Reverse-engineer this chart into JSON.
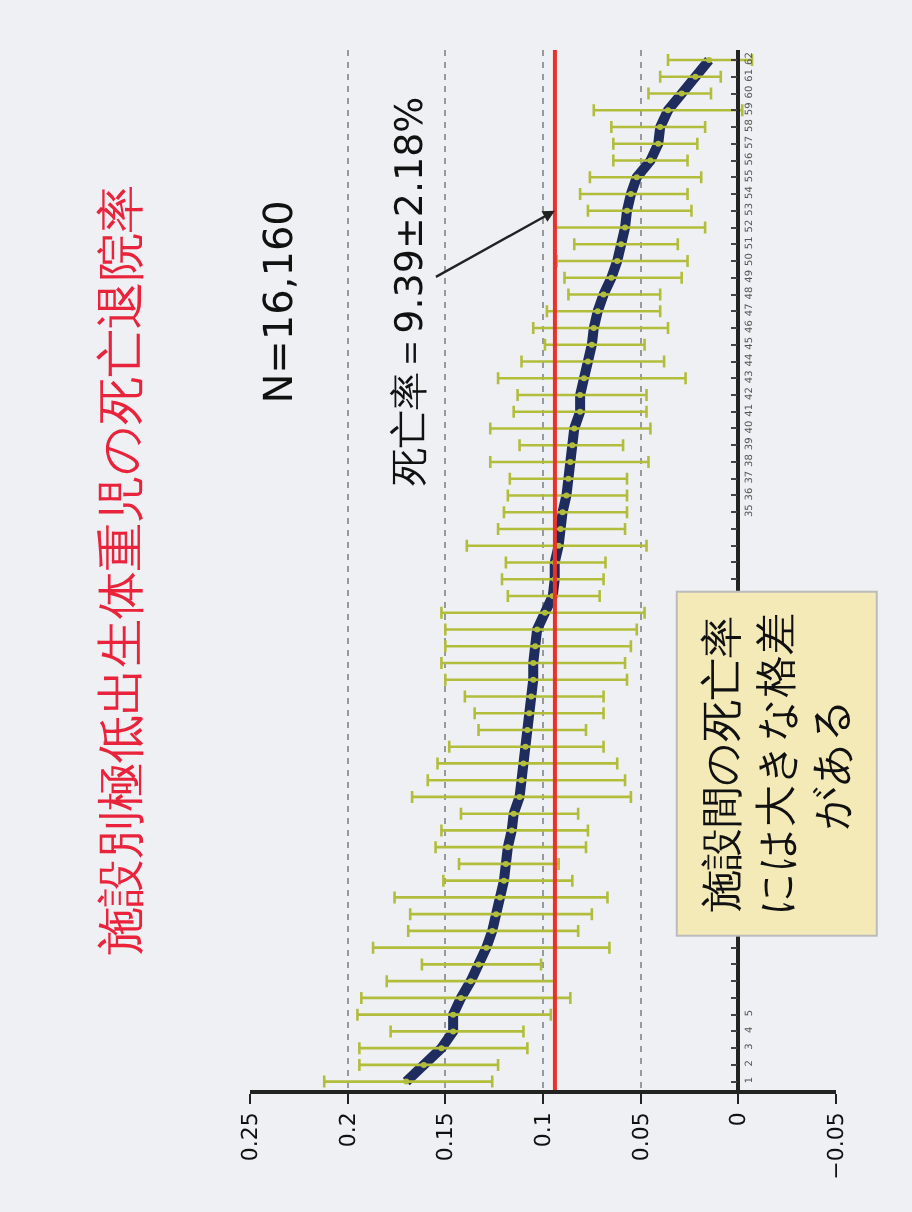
{
  "chart_data": {
    "type": "line",
    "orientation": "horizontal",
    "title": "施設別極低出生体重児の死亡退院率",
    "categories": [
      "62",
      "61",
      "60",
      "59",
      "58",
      "57",
      "56",
      "55",
      "54",
      "53",
      "52",
      "51",
      "50",
      "49",
      "48",
      "47",
      "46",
      "45",
      "44",
      "43",
      "42",
      "41",
      "40",
      "39",
      "38",
      "37",
      "36",
      "35",
      null,
      null,
      null,
      null,
      null,
      null,
      null,
      null,
      null,
      null,
      null,
      null,
      null,
      null,
      null,
      null,
      null,
      null,
      null,
      null,
      null,
      null,
      null,
      null,
      null,
      null,
      null,
      null,
      null,
      "5",
      "4",
      "3",
      "2",
      "1"
    ],
    "series": [
      {
        "type": "scatter",
        "color": "#b3bd3c",
        "values": [
          0.015,
          0.022,
          0.029,
          0.036,
          0.04,
          0.041,
          0.045,
          0.052,
          0.055,
          0.057,
          0.058,
          0.06,
          0.062,
          0.065,
          0.069,
          0.072,
          0.074,
          0.075,
          0.077,
          0.079,
          0.081,
          0.081,
          0.084,
          0.085,
          0.086,
          0.087,
          0.088,
          0.09,
          0.091,
          0.092,
          0.094,
          0.094,
          0.095,
          0.099,
          0.103,
          0.104,
          0.105,
          0.105,
          0.106,
          0.107,
          0.108,
          0.109,
          0.11,
          0.111,
          0.112,
          0.115,
          0.116,
          0.118,
          0.119,
          0.12,
          0.122,
          0.124,
          0.126,
          0.129,
          0.133,
          0.137,
          0.142,
          0.146,
          0.146,
          0.152,
          0.161,
          0.17
        ],
        "errors": [
          [
            -0.007,
            0.036
          ],
          [
            0.009,
            0.04
          ],
          [
            0.014,
            0.046
          ],
          [
            -0.002,
            0.074
          ],
          [
            0.017,
            0.065
          ],
          [
            0.021,
            0.064
          ],
          [
            0.026,
            0.064
          ],
          [
            0.019,
            0.076
          ],
          [
            0.026,
            0.081
          ],
          [
            0.024,
            0.077
          ],
          [
            0.017,
            0.094
          ],
          [
            0.031,
            0.084
          ],
          [
            0.026,
            0.093
          ],
          [
            0.029,
            0.089
          ],
          [
            0.04,
            0.087
          ],
          [
            0.04,
            0.098
          ],
          [
            0.036,
            0.105
          ],
          [
            0.048,
            0.099
          ],
          [
            0.038,
            0.111
          ],
          [
            0.027,
            0.123
          ],
          [
            0.047,
            0.113
          ],
          [
            0.047,
            0.115
          ],
          [
            0.045,
            0.127
          ],
          [
            0.059,
            0.112
          ],
          [
            0.046,
            0.127
          ],
          [
            0.057,
            0.117
          ],
          [
            0.057,
            0.118
          ],
          [
            0.057,
            0.12
          ],
          [
            0.058,
            0.123
          ],
          [
            0.047,
            0.139
          ],
          [
            0.068,
            0.119
          ],
          [
            0.069,
            0.121
          ],
          [
            0.071,
            0.118
          ],
          [
            0.048,
            0.152
          ],
          [
            0.052,
            0.15
          ],
          [
            0.055,
            0.15
          ],
          [
            0.058,
            0.152
          ],
          [
            0.057,
            0.15
          ],
          [
            0.069,
            0.14
          ],
          [
            0.069,
            0.135
          ],
          [
            0.078,
            0.133
          ],
          [
            0.069,
            0.148
          ],
          [
            0.062,
            0.154
          ],
          [
            0.058,
            0.159
          ],
          [
            0.055,
            0.167
          ],
          [
            0.082,
            0.142
          ],
          [
            0.077,
            0.152
          ],
          [
            0.078,
            0.155
          ],
          [
            0.092,
            0.143
          ],
          [
            0.085,
            0.151
          ],
          [
            0.067,
            0.176
          ],
          [
            0.075,
            0.168
          ],
          [
            0.082,
            0.169
          ],
          [
            0.066,
            0.187
          ],
          [
            0.101,
            0.162
          ],
          [
            0.094,
            0.18
          ],
          [
            0.086,
            0.193
          ],
          [
            0.096,
            0.195
          ],
          [
            0.11,
            0.178
          ],
          [
            0.108,
            0.194
          ],
          [
            0.123,
            0.194
          ],
          [
            0.126,
            0.212
          ]
        ]
      },
      {
        "color": "#1f2d5e",
        "values": [
          0.015,
          0.022,
          0.029,
          0.036,
          0.04,
          0.041,
          0.045,
          0.052,
          0.055,
          0.057,
          0.058,
          0.06,
          0.062,
          0.065,
          0.069,
          0.072,
          0.074,
          0.075,
          0.077,
          0.079,
          0.081,
          0.081,
          0.084,
          0.085,
          0.086,
          0.087,
          0.088,
          0.09,
          0.091,
          0.092,
          0.094,
          0.094,
          0.095,
          0.099,
          0.103,
          0.104,
          0.105,
          0.105,
          0.106,
          0.107,
          0.108,
          0.109,
          0.11,
          0.111,
          0.112,
          0.115,
          0.116,
          0.118,
          0.119,
          0.12,
          0.122,
          0.124,
          0.126,
          0.129,
          0.133,
          0.137,
          0.142,
          0.146,
          0.146,
          0.152,
          0.161,
          0.17
        ]
      }
    ],
    "xlim": [
      0.25,
      -0.05
    ],
    "xticks": [
      0.25,
      0.2,
      0.15,
      0.1,
      0.05,
      0,
      {
        "value": -0.05,
        "label": "−0.05"
      }
    ],
    "grid": "x",
    "marker": "none",
    "line_style": "solid",
    "ref_lines": [
      {
        "axis": "x",
        "value": 0.0939,
        "label": "死亡率＝9.39±2.18%",
        "color": "#e8322b"
      }
    ],
    "annotations": [
      "N=16,160",
      "施設間の死亡率には大きな格差がある"
    ]
  }
}
